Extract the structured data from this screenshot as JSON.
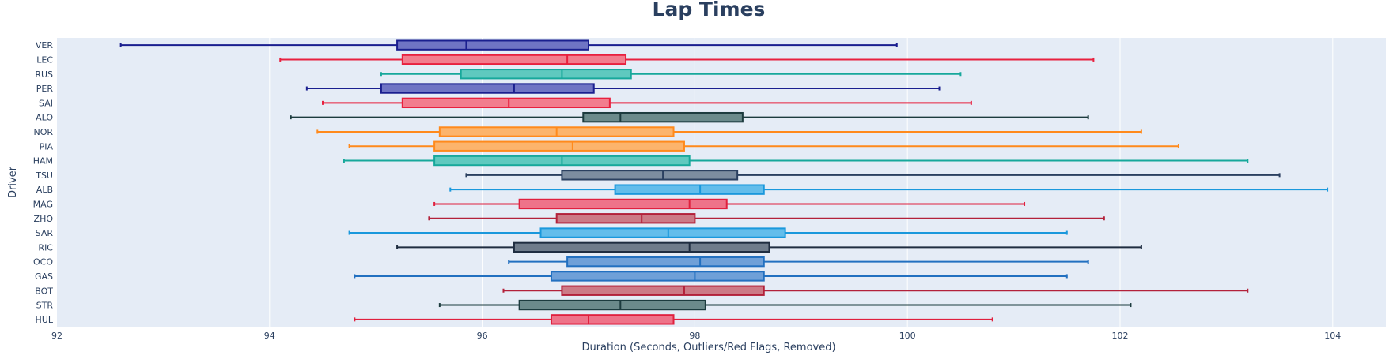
{
  "chart_data": {
    "type": "box",
    "orientation": "horizontal",
    "title": "Lap Times",
    "xlabel": "Duration (Seconds, Outliers/Red Flags, Removed)",
    "ylabel": "Driver",
    "xlim": [
      92,
      104.5
    ],
    "xticks": [
      92,
      94,
      96,
      98,
      100,
      102,
      104
    ],
    "grid": true,
    "plot_background": "#e5ecf6",
    "series": [
      {
        "name": "VER",
        "color": "#1a1f8f",
        "fill": "#6f74c4",
        "min": 92.6,
        "q1": 95.2,
        "median": 95.85,
        "q3": 97.0,
        "max": 99.9
      },
      {
        "name": "LEC",
        "color": "#e8203e",
        "fill": "#f27d8e",
        "min": 94.1,
        "q1": 95.25,
        "median": 96.8,
        "q3": 97.35,
        "max": 101.75
      },
      {
        "name": "RUS",
        "color": "#17a89b",
        "fill": "#5fc9bf",
        "min": 95.05,
        "q1": 95.8,
        "median": 96.75,
        "q3": 97.4,
        "max": 100.5
      },
      {
        "name": "PER",
        "color": "#1a1f8f",
        "fill": "#6f74c4",
        "min": 94.35,
        "q1": 95.05,
        "median": 96.3,
        "q3": 97.05,
        "max": 100.3
      },
      {
        "name": "SAI",
        "color": "#e8203e",
        "fill": "#f27d8e",
        "min": 94.5,
        "q1": 95.25,
        "median": 96.25,
        "q3": 97.2,
        "max": 100.6
      },
      {
        "name": "ALO",
        "color": "#1c3b3e",
        "fill": "#6b8a8b",
        "min": 94.2,
        "q1": 96.95,
        "median": 97.3,
        "q3": 98.45,
        "max": 101.7
      },
      {
        "name": "NOR",
        "color": "#ff8a1c",
        "fill": "#fcb46c",
        "min": 94.45,
        "q1": 95.6,
        "median": 96.7,
        "q3": 97.8,
        "max": 102.2
      },
      {
        "name": "PIA",
        "color": "#ff8a1c",
        "fill": "#fcb46c",
        "min": 94.75,
        "q1": 95.55,
        "median": 96.85,
        "q3": 97.9,
        "max": 102.55
      },
      {
        "name": "HAM",
        "color": "#17a89b",
        "fill": "#5fc9bf",
        "min": 94.7,
        "q1": 95.55,
        "median": 96.75,
        "q3": 97.95,
        "max": 103.2
      },
      {
        "name": "TSU",
        "color": "#2b4060",
        "fill": "#7d8da0",
        "min": 95.85,
        "q1": 96.75,
        "median": 97.7,
        "q3": 98.4,
        "max": 103.5
      },
      {
        "name": "ALB",
        "color": "#1a98dc",
        "fill": "#63bdeb",
        "min": 95.7,
        "q1": 97.25,
        "median": 98.05,
        "q3": 98.65,
        "max": 103.95
      },
      {
        "name": "MAG",
        "color": "#e0203e",
        "fill": "#ee7389",
        "min": 95.55,
        "q1": 96.35,
        "median": 97.95,
        "q3": 98.3,
        "max": 101.1
      },
      {
        "name": "ZHO",
        "color": "#b3213a",
        "fill": "#cc7a86",
        "min": 95.5,
        "q1": 96.7,
        "median": 97.5,
        "q3": 98.0,
        "max": 101.85
      },
      {
        "name": "SAR",
        "color": "#1a98dc",
        "fill": "#63bdeb",
        "min": 94.75,
        "q1": 96.55,
        "median": 97.75,
        "q3": 98.85,
        "max": 101.5
      },
      {
        "name": "RIC",
        "color": "#1f2d40",
        "fill": "#6f7c8b",
        "min": 95.2,
        "q1": 96.3,
        "median": 97.95,
        "q3": 98.7,
        "max": 102.2
      },
      {
        "name": "OCO",
        "color": "#2270c0",
        "fill": "#6fa0d8",
        "min": 96.25,
        "q1": 96.8,
        "median": 98.05,
        "q3": 98.65,
        "max": 101.7
      },
      {
        "name": "GAS",
        "color": "#2270c0",
        "fill": "#6fa0d8",
        "min": 94.8,
        "q1": 96.65,
        "median": 98.0,
        "q3": 98.65,
        "max": 101.5
      },
      {
        "name": "BOT",
        "color": "#b3213a",
        "fill": "#cc7a86",
        "min": 96.2,
        "q1": 96.75,
        "median": 97.9,
        "q3": 98.65,
        "max": 103.2
      },
      {
        "name": "STR",
        "color": "#1c3b3e",
        "fill": "#6b8a8b",
        "min": 95.6,
        "q1": 96.35,
        "median": 97.3,
        "q3": 98.1,
        "max": 102.1
      },
      {
        "name": "HUL",
        "color": "#e0203e",
        "fill": "#ee7389",
        "min": 94.8,
        "q1": 96.65,
        "median": 97.0,
        "q3": 97.8,
        "max": 100.8
      }
    ]
  }
}
